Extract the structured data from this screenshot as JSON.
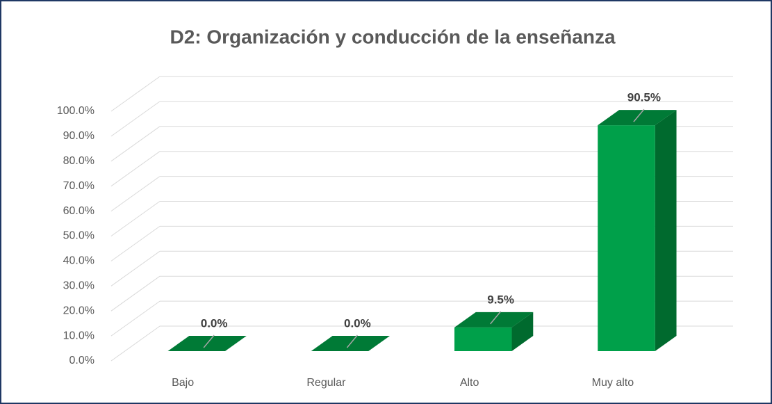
{
  "chart_data": {
    "type": "bar3d",
    "title": "D2: Organización y conducción de la enseñanza",
    "categories": [
      "Bajo",
      "Regular",
      "Alto",
      "Muy alto"
    ],
    "values": [
      0,
      0,
      9.5,
      90.5
    ],
    "value_labels": [
      "0.0%",
      "0.0%",
      "9.5%",
      "90.5%"
    ],
    "color": "#00a04a",
    "ylim": [
      0,
      100
    ],
    "yticks": [
      {
        "value": 0,
        "label": "0.0%"
      },
      {
        "value": 10,
        "label": "10.0%"
      },
      {
        "value": 20,
        "label": "20.0%"
      },
      {
        "value": 30,
        "label": "30.0%"
      },
      {
        "value": 40,
        "label": "40.0%"
      },
      {
        "value": 50,
        "label": "50.0%"
      },
      {
        "value": 60,
        "label": "60.0%"
      },
      {
        "value": 70,
        "label": "70.0%"
      },
      {
        "value": 80,
        "label": "80.0%"
      },
      {
        "value": 90,
        "label": "90.0%"
      },
      {
        "value": 100,
        "label": "100.0%"
      }
    ],
    "grid": true
  }
}
